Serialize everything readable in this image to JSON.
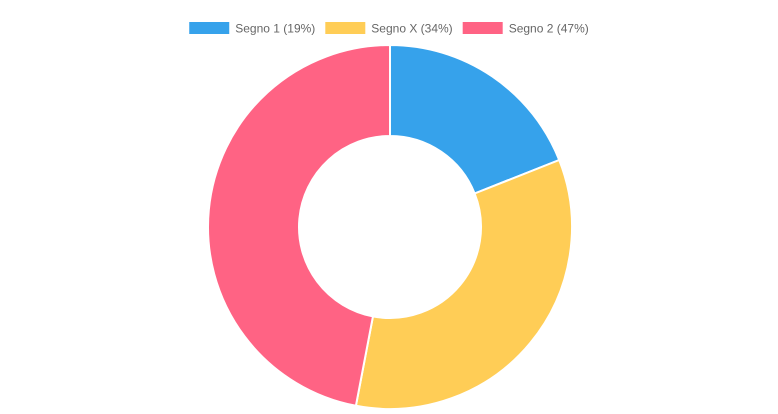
{
  "chart_data": {
    "type": "pie",
    "variant": "doughnut",
    "title": "",
    "legend_position": "top",
    "slices": [
      {
        "label": "Segno 1 (19%)",
        "value": 19,
        "color": "#36A2EB"
      },
      {
        "label": "Segno X (34%)",
        "value": 34,
        "color": "#FFCD56"
      },
      {
        "label": "Segno 2 (47%)",
        "value": 47,
        "color": "#FF6384"
      }
    ]
  }
}
